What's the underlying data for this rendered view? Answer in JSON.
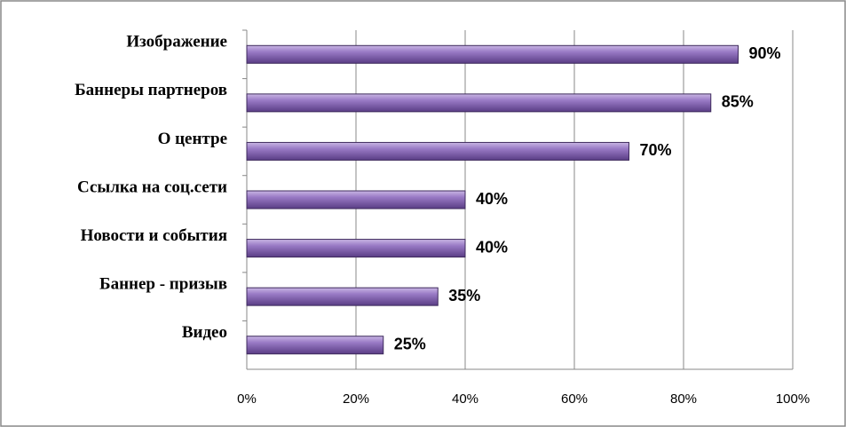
{
  "chart_data": {
    "type": "bar",
    "orientation": "horizontal",
    "categories": [
      "Изображение",
      "Баннеры партнеров",
      "О центре",
      "Ссылка на соц.сети",
      "Новости и события",
      "Баннер - призыв",
      "Видео"
    ],
    "values": [
      90,
      85,
      70,
      40,
      40,
      35,
      25
    ],
    "value_labels": [
      "90%",
      "85%",
      "70%",
      "40%",
      "40%",
      "35%",
      "25%"
    ],
    "color": "#7d5ca8",
    "xlim": [
      0,
      100
    ],
    "xticks": [
      {
        "value": 0,
        "label": "0%"
      },
      {
        "value": 20,
        "label": "20%"
      },
      {
        "value": 40,
        "label": "40%"
      },
      {
        "value": 60,
        "label": "60%"
      },
      {
        "value": 80,
        "label": "80%"
      },
      {
        "value": 100,
        "label": "100%"
      }
    ],
    "grid": true
  }
}
